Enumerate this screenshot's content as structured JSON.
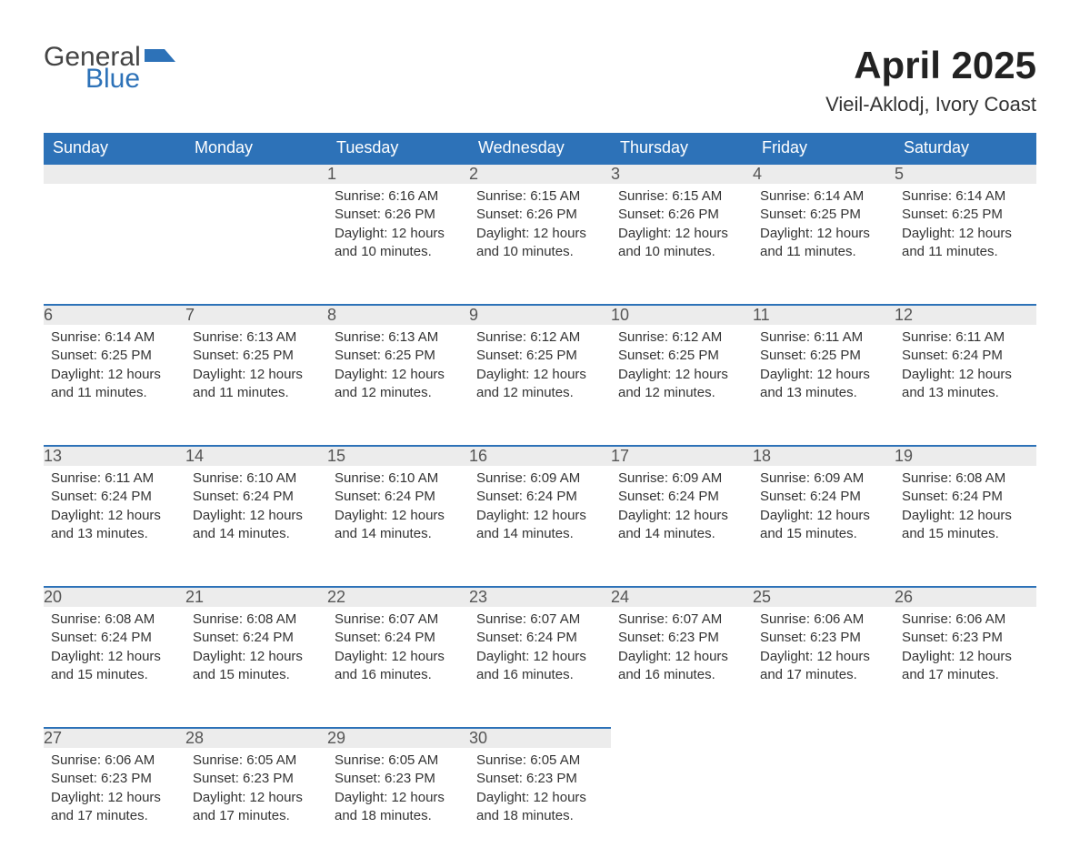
{
  "logo": {
    "general": "General",
    "blue": "Blue",
    "icon_color": "#2d72b8"
  },
  "title": "April 2025",
  "subtitle": "Vieil-Aklodj, Ivory Coast",
  "colors": {
    "header_bg": "#2d72b8",
    "header_text": "#ffffff",
    "daynum_bg": "#ececec",
    "daynum_border": "#2d72b8",
    "body_text": "#333333",
    "page_bg": "#ffffff"
  },
  "fontsizes": {
    "title": 42,
    "subtitle": 22,
    "header": 18,
    "daynum": 18,
    "daydata": 15
  },
  "weekdays": [
    "Sunday",
    "Monday",
    "Tuesday",
    "Wednesday",
    "Thursday",
    "Friday",
    "Saturday"
  ],
  "weeks": [
    [
      null,
      null,
      {
        "num": "1",
        "sunrise": "Sunrise: 6:16 AM",
        "sunset": "Sunset: 6:26 PM",
        "daylight": "Daylight: 12 hours and 10 minutes."
      },
      {
        "num": "2",
        "sunrise": "Sunrise: 6:15 AM",
        "sunset": "Sunset: 6:26 PM",
        "daylight": "Daylight: 12 hours and 10 minutes."
      },
      {
        "num": "3",
        "sunrise": "Sunrise: 6:15 AM",
        "sunset": "Sunset: 6:26 PM",
        "daylight": "Daylight: 12 hours and 10 minutes."
      },
      {
        "num": "4",
        "sunrise": "Sunrise: 6:14 AM",
        "sunset": "Sunset: 6:25 PM",
        "daylight": "Daylight: 12 hours and 11 minutes."
      },
      {
        "num": "5",
        "sunrise": "Sunrise: 6:14 AM",
        "sunset": "Sunset: 6:25 PM",
        "daylight": "Daylight: 12 hours and 11 minutes."
      }
    ],
    [
      {
        "num": "6",
        "sunrise": "Sunrise: 6:14 AM",
        "sunset": "Sunset: 6:25 PM",
        "daylight": "Daylight: 12 hours and 11 minutes."
      },
      {
        "num": "7",
        "sunrise": "Sunrise: 6:13 AM",
        "sunset": "Sunset: 6:25 PM",
        "daylight": "Daylight: 12 hours and 11 minutes."
      },
      {
        "num": "8",
        "sunrise": "Sunrise: 6:13 AM",
        "sunset": "Sunset: 6:25 PM",
        "daylight": "Daylight: 12 hours and 12 minutes."
      },
      {
        "num": "9",
        "sunrise": "Sunrise: 6:12 AM",
        "sunset": "Sunset: 6:25 PM",
        "daylight": "Daylight: 12 hours and 12 minutes."
      },
      {
        "num": "10",
        "sunrise": "Sunrise: 6:12 AM",
        "sunset": "Sunset: 6:25 PM",
        "daylight": "Daylight: 12 hours and 12 minutes."
      },
      {
        "num": "11",
        "sunrise": "Sunrise: 6:11 AM",
        "sunset": "Sunset: 6:25 PM",
        "daylight": "Daylight: 12 hours and 13 minutes."
      },
      {
        "num": "12",
        "sunrise": "Sunrise: 6:11 AM",
        "sunset": "Sunset: 6:24 PM",
        "daylight": "Daylight: 12 hours and 13 minutes."
      }
    ],
    [
      {
        "num": "13",
        "sunrise": "Sunrise: 6:11 AM",
        "sunset": "Sunset: 6:24 PM",
        "daylight": "Daylight: 12 hours and 13 minutes."
      },
      {
        "num": "14",
        "sunrise": "Sunrise: 6:10 AM",
        "sunset": "Sunset: 6:24 PM",
        "daylight": "Daylight: 12 hours and 14 minutes."
      },
      {
        "num": "15",
        "sunrise": "Sunrise: 6:10 AM",
        "sunset": "Sunset: 6:24 PM",
        "daylight": "Daylight: 12 hours and 14 minutes."
      },
      {
        "num": "16",
        "sunrise": "Sunrise: 6:09 AM",
        "sunset": "Sunset: 6:24 PM",
        "daylight": "Daylight: 12 hours and 14 minutes."
      },
      {
        "num": "17",
        "sunrise": "Sunrise: 6:09 AM",
        "sunset": "Sunset: 6:24 PM",
        "daylight": "Daylight: 12 hours and 14 minutes."
      },
      {
        "num": "18",
        "sunrise": "Sunrise: 6:09 AM",
        "sunset": "Sunset: 6:24 PM",
        "daylight": "Daylight: 12 hours and 15 minutes."
      },
      {
        "num": "19",
        "sunrise": "Sunrise: 6:08 AM",
        "sunset": "Sunset: 6:24 PM",
        "daylight": "Daylight: 12 hours and 15 minutes."
      }
    ],
    [
      {
        "num": "20",
        "sunrise": "Sunrise: 6:08 AM",
        "sunset": "Sunset: 6:24 PM",
        "daylight": "Daylight: 12 hours and 15 minutes."
      },
      {
        "num": "21",
        "sunrise": "Sunrise: 6:08 AM",
        "sunset": "Sunset: 6:24 PM",
        "daylight": "Daylight: 12 hours and 15 minutes."
      },
      {
        "num": "22",
        "sunrise": "Sunrise: 6:07 AM",
        "sunset": "Sunset: 6:24 PM",
        "daylight": "Daylight: 12 hours and 16 minutes."
      },
      {
        "num": "23",
        "sunrise": "Sunrise: 6:07 AM",
        "sunset": "Sunset: 6:24 PM",
        "daylight": "Daylight: 12 hours and 16 minutes."
      },
      {
        "num": "24",
        "sunrise": "Sunrise: 6:07 AM",
        "sunset": "Sunset: 6:23 PM",
        "daylight": "Daylight: 12 hours and 16 minutes."
      },
      {
        "num": "25",
        "sunrise": "Sunrise: 6:06 AM",
        "sunset": "Sunset: 6:23 PM",
        "daylight": "Daylight: 12 hours and 17 minutes."
      },
      {
        "num": "26",
        "sunrise": "Sunrise: 6:06 AM",
        "sunset": "Sunset: 6:23 PM",
        "daylight": "Daylight: 12 hours and 17 minutes."
      }
    ],
    [
      {
        "num": "27",
        "sunrise": "Sunrise: 6:06 AM",
        "sunset": "Sunset: 6:23 PM",
        "daylight": "Daylight: 12 hours and 17 minutes."
      },
      {
        "num": "28",
        "sunrise": "Sunrise: 6:05 AM",
        "sunset": "Sunset: 6:23 PM",
        "daylight": "Daylight: 12 hours and 17 minutes."
      },
      {
        "num": "29",
        "sunrise": "Sunrise: 6:05 AM",
        "sunset": "Sunset: 6:23 PM",
        "daylight": "Daylight: 12 hours and 18 minutes."
      },
      {
        "num": "30",
        "sunrise": "Sunrise: 6:05 AM",
        "sunset": "Sunset: 6:23 PM",
        "daylight": "Daylight: 12 hours and 18 minutes."
      },
      null,
      null,
      null
    ]
  ]
}
